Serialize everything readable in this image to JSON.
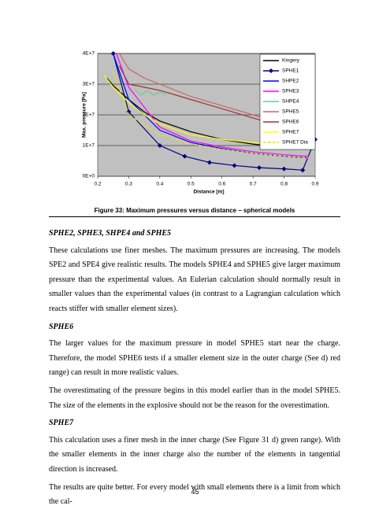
{
  "chart_data": {
    "type": "line",
    "xlabel": "Distance [m]",
    "ylabel": "Max. pressure [Pa]",
    "xlim": [
      0.2,
      0.9
    ],
    "xticks": [
      0.2,
      0.3,
      0.4,
      0.5,
      0.6,
      0.7,
      0.8,
      0.9
    ],
    "ylim": [
      0,
      40000000
    ],
    "yticks": [
      {
        "value": 0,
        "label": "0E+0"
      },
      {
        "value": 10000000,
        "label": "1E+7"
      },
      {
        "value": 20000000,
        "label": "2E+7"
      },
      {
        "value": 30000000,
        "label": "3E+7"
      },
      {
        "value": 40000000,
        "label": "4E+7"
      }
    ],
    "grid": true,
    "legend": "upper right",
    "series": [
      {
        "name": "Kingery",
        "color": "#000000",
        "x": [
          0.23,
          0.25,
          0.3,
          0.35,
          0.4,
          0.5,
          0.6,
          0.7,
          0.8,
          0.85
        ],
        "values": [
          32000000,
          29500000,
          25000000,
          21000000,
          18000000,
          14500000,
          12000000,
          10500000,
          9300000,
          9000000
        ]
      },
      {
        "name": "SPHE1",
        "color": "#000080",
        "marker": "diamond",
        "x": [
          0.25,
          0.3,
          0.4,
          0.48,
          0.56,
          0.64,
          0.72,
          0.8,
          0.86,
          0.9
        ],
        "values": [
          40000000,
          21000000,
          10000000,
          6500000,
          4500000,
          3500000,
          2800000,
          2400000,
          2000000,
          12000000
        ]
      },
      {
        "name": "SHPE2",
        "color": "#0000ff",
        "x": [
          0.25,
          0.3,
          0.4,
          0.5,
          0.6,
          0.7,
          0.8,
          0.88
        ],
        "values": [
          40000000,
          25000000,
          15000000,
          11000000,
          9000000,
          7500000,
          6500000,
          6000000
        ]
      },
      {
        "name": "SPHE3",
        "color": "#ff00ff",
        "x": [
          0.26,
          0.3,
          0.4,
          0.5,
          0.6,
          0.7,
          0.8,
          0.88
        ],
        "values": [
          40000000,
          29000000,
          16000000,
          11500000,
          9500000,
          8000000,
          7000000,
          6500000
        ]
      },
      {
        "name": "SHPE4",
        "color": "#66cc99",
        "x": [
          0.32,
          0.34,
          0.36,
          0.38,
          0.4,
          0.42
        ],
        "values": [
          28000000,
          26500000,
          28000000,
          26500000,
          27500000,
          26500000
        ]
      },
      {
        "name": "SPHE5",
        "color": "#cc6666",
        "x": [
          0.27,
          0.3,
          0.35,
          0.4,
          0.5,
          0.6,
          0.7,
          0.8,
          0.88
        ],
        "values": [
          40000000,
          35000000,
          32000000,
          30000000,
          26000000,
          23000000,
          20000000,
          17000000,
          14000000
        ]
      },
      {
        "name": "SPHE6",
        "color": "#993333",
        "x": [
          0.27,
          0.3,
          0.35,
          0.4,
          0.5,
          0.6,
          0.7,
          0.8,
          0.88
        ],
        "values": [
          36000000,
          30000000,
          29000000,
          28000000,
          25000000,
          22000000,
          19000000,
          16000000,
          13000000
        ]
      },
      {
        "name": "SPHE7",
        "color": "#ffff00",
        "x": [
          0.22,
          0.25,
          0.3,
          0.35,
          0.4,
          0.5,
          0.6,
          0.7,
          0.8,
          0.88
        ],
        "values": [
          33000000,
          29000000,
          24000000,
          20000000,
          17000000,
          13500000,
          12000000,
          11000000,
          10000000,
          9500000
        ]
      },
      {
        "name": "SPHE7 Dia",
        "color": "#e6e600",
        "dash": true,
        "x": [
          0.25,
          0.3,
          0.4,
          0.5,
          0.6,
          0.7,
          0.8,
          0.88
        ],
        "values": [
          34000000,
          20000000,
          13500000,
          10500000,
          8800000,
          7500000,
          6500000,
          6000000
        ]
      }
    ]
  },
  "caption": "Figure 33: Maximum pressures versus distance – spherical models",
  "sections": [
    {
      "heading": "SPHE2, SPHE3, SHPE4 and SPHE5",
      "paragraphs": [
        "These calculations use finer meshes. The maximum pressures are increasing. The models SPE2 and SPE4 give realistic results. The models SPHE4 and SPHE5 give larger maximum pressure than the experimental values. An Eulerian calculation should normally result in smaller values than the experimental values (in contrast to a Lagrangian calculation which reacts stiffer with smaller element sizes)."
      ]
    },
    {
      "heading": "SPHE6",
      "paragraphs": [
        "The larger values for the maximum pressure in model SPHE5 start near the charge. Therefore, the model SPHE6 tests if a smaller element size in the outer charge (See d) red range) can result in more realistic values.",
        "The overestimating of the pressure begins in this model earlier than in the model SPHE5. The size of the elements in the explosive should not be the reason for the overestimation."
      ]
    },
    {
      "heading": "SPHE7",
      "paragraphs": [
        "This calculation uses a finer mesh in the inner charge (See Figure 31 d) green range). With the smaller elements in the inner charge also the number of the elements in tangential direction is increased.",
        "The results are quite better. For every model with small elements there is a limit from which the cal-"
      ]
    }
  ],
  "page_number": "45"
}
